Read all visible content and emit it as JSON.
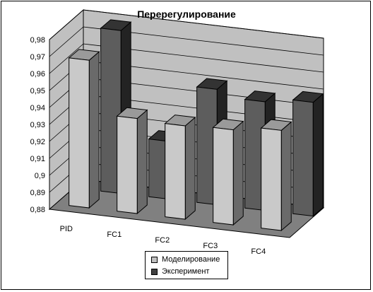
{
  "chart_data": {
    "type": "bar",
    "title": "Перерегулирование",
    "categories": [
      "PID",
      "FC1",
      "FC2",
      "FC3",
      "FC4"
    ],
    "series": [
      {
        "name": "Моделирование",
        "values": [
          0.967,
          0.936,
          0.935,
          0.936,
          0.939
        ],
        "color": "#c0c0c0"
      },
      {
        "name": "Эксперимент",
        "values": [
          0.976,
          0.914,
          0.948,
          0.944,
          0.947
        ],
        "color": "#404040"
      }
    ],
    "y_ticks": [
      "0,88",
      "0,89",
      "0,9",
      "0,91",
      "0,92",
      "0,93",
      "0,94",
      "0,95",
      "0,96",
      "0,97",
      "0,98"
    ],
    "ylim": [
      0.88,
      0.98
    ],
    "grid": true,
    "legend_position": "bottom",
    "style": "3d-clustered-column",
    "colors": {
      "floor": "#808080",
      "walls": "#c0c0c0",
      "gridlines": "#000000"
    }
  }
}
